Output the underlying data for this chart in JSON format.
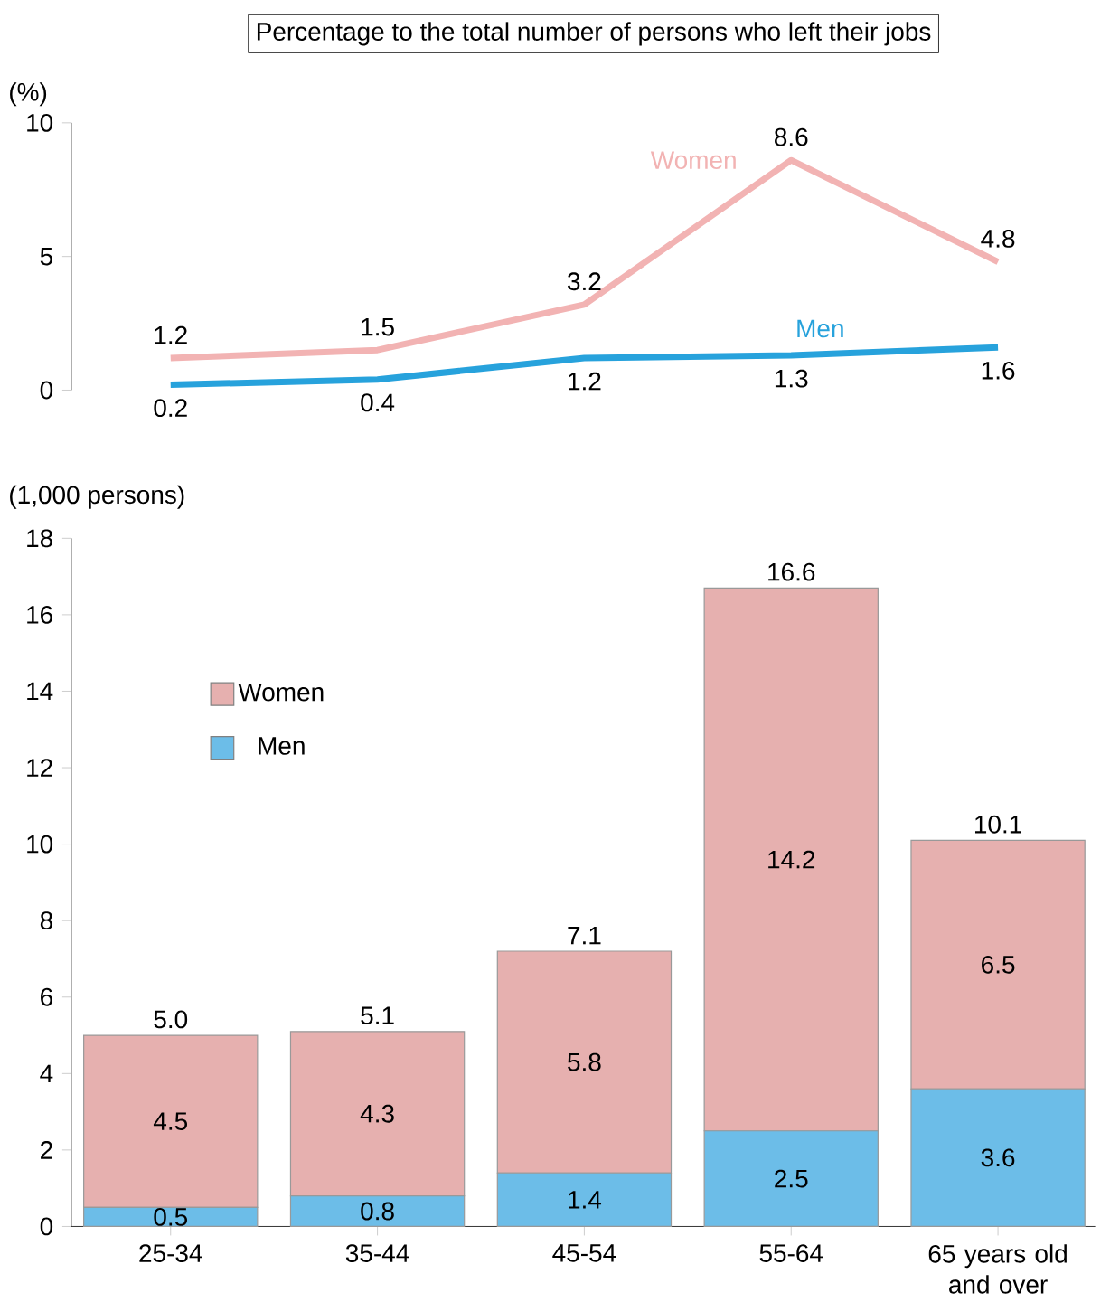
{
  "chart_data": [
    {
      "type": "line",
      "title": "Percentage to the total number of persons who left their jobs",
      "ylabel": "(%)",
      "categories": [
        null,
        null,
        null,
        null,
        null
      ],
      "series": [
        {
          "name": "Women",
          "color": "#f2b3b3",
          "values": [
            1.2,
            1.5,
            3.2,
            8.6,
            4.8
          ]
        },
        {
          "name": "Men",
          "color": "#27a2dc",
          "values": [
            0.2,
            0.4,
            1.2,
            1.3,
            1.6
          ]
        }
      ],
      "ylim": [
        0,
        10
      ],
      "yticks": [
        0,
        5,
        10
      ],
      "data_labels": true,
      "line_style": "solid",
      "marker": "none",
      "tick_labels": "y"
    },
    {
      "type": "bar",
      "stacked": true,
      "ylabel": "(1,000 persons)",
      "categories": [
        "25-34",
        "35-44",
        "45-54",
        "55-64",
        "65 years old and over"
      ],
      "series": [
        {
          "name": "Men",
          "color": "#6cbde8",
          "values": [
            0.5,
            0.8,
            1.4,
            2.5,
            3.6
          ]
        },
        {
          "name": "Women",
          "color": "#e6b0af",
          "values": [
            4.5,
            4.3,
            5.8,
            14.2,
            6.5
          ]
        }
      ],
      "ylim": [
        0,
        18
      ],
      "yticks": [
        0,
        2,
        4,
        6,
        8,
        10,
        12,
        14,
        16,
        18
      ],
      "data_labels": true,
      "totals": [
        "5.0",
        "5.1",
        "7.1",
        "16.6",
        "10.1"
      ],
      "legend": "top left"
    }
  ]
}
